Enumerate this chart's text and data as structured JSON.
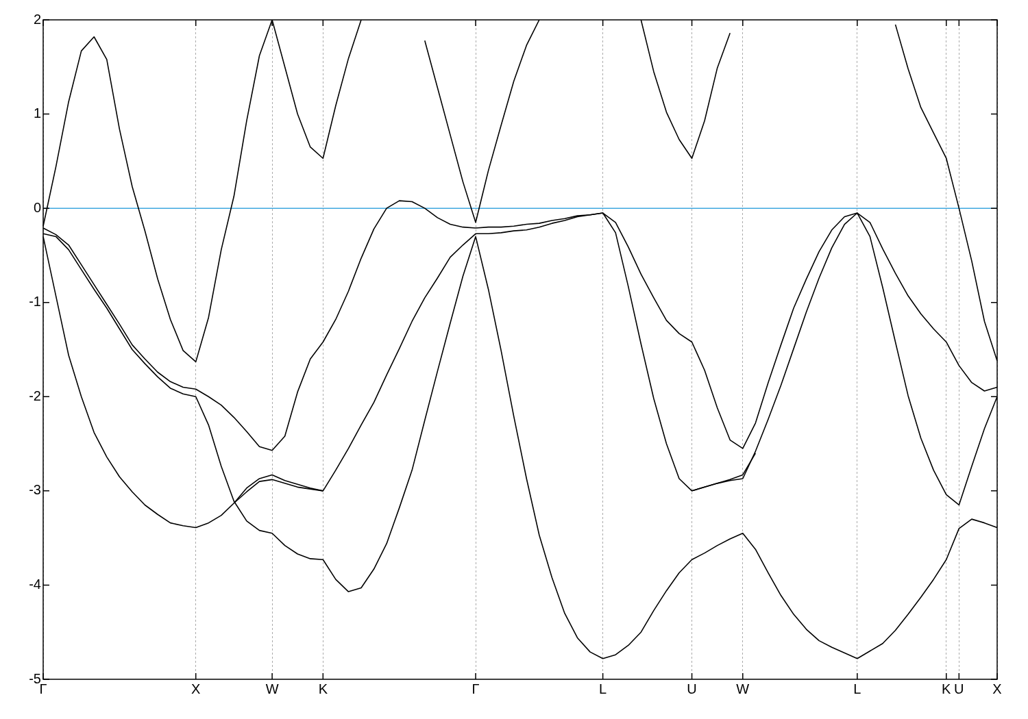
{
  "chart_data": {
    "type": "line",
    "ylim": [
      -5,
      2
    ],
    "categories": [
      "Γ",
      null,
      null,
      null,
      null,
      null,
      null,
      null,
      null,
      null,
      null,
      null,
      "X",
      null,
      null,
      null,
      null,
      null,
      "W",
      null,
      null,
      null,
      "K",
      null,
      null,
      null,
      null,
      null,
      null,
      null,
      null,
      null,
      null,
      null,
      "Γ",
      null,
      null,
      null,
      null,
      null,
      null,
      null,
      null,
      null,
      "L",
      null,
      null,
      null,
      null,
      null,
      null,
      "U",
      null,
      null,
      null,
      "W",
      null,
      null,
      null,
      null,
      null,
      null,
      null,
      null,
      "L",
      null,
      null,
      null,
      null,
      null,
      null,
      "K",
      "U",
      null,
      null,
      "X"
    ],
    "yticks": [
      -5,
      -4,
      -3,
      -2,
      -1,
      0,
      1,
      2
    ],
    "grid": "x",
    "legend": false,
    "marker": "none",
    "line_style": "solid",
    "ref_lines": [
      {
        "axis": "y",
        "value": 0,
        "color": "#3ea8e0"
      }
    ],
    "series": [
      {
        "color": "#000000",
        "values": [
          -0.21,
          -0.28,
          -0.39,
          -0.6,
          -0.81,
          -1.02,
          -1.23,
          -1.45,
          -1.6,
          -1.74,
          -1.84,
          -1.9,
          -1.92,
          -2.0,
          -2.09,
          -2.22,
          -2.37,
          -2.53,
          -2.57,
          -2.42,
          -1.95,
          -1.6,
          -1.42,
          -1.18,
          -0.88,
          -0.53,
          -0.22,
          0.0,
          0.08,
          0.07,
          0.0,
          -0.1,
          -0.17,
          -0.2,
          -0.21,
          -0.2,
          -0.2,
          -0.19,
          -0.17,
          -0.16,
          -0.13,
          -0.11,
          -0.08,
          -0.07,
          -0.05,
          -0.15,
          -0.41,
          -0.7,
          -0.95,
          -1.19,
          -1.33,
          -1.42,
          -1.72,
          -2.12,
          -2.46,
          -2.55,
          -2.28,
          -1.85,
          -1.45,
          -1.06,
          -0.75,
          -0.46,
          -0.23,
          -0.09,
          -0.05,
          -0.15,
          -0.43,
          -0.69,
          -0.93,
          -1.12,
          -1.28,
          -1.42,
          -1.67,
          -1.85,
          -1.94,
          -1.9
        ]
      },
      {
        "color": "#000000",
        "values": [
          -0.27,
          -0.3,
          -0.44,
          -0.65,
          -0.86,
          -1.06,
          -1.28,
          -1.5,
          -1.65,
          -1.79,
          -1.91,
          -1.97,
          -2.0,
          -2.3,
          -2.74,
          -3.11,
          -3.32,
          -3.42,
          -3.45,
          -3.58,
          -3.67,
          -3.72,
          -3.73,
          -3.94,
          -4.07,
          -4.03,
          -3.83,
          -3.56,
          -3.18,
          -2.78,
          -2.25,
          -1.73,
          -1.22,
          -0.72,
          -0.3,
          -0.86,
          -1.51,
          -2.21,
          -2.87,
          -3.47,
          -3.92,
          -4.3,
          -4.56,
          -4.71,
          -4.78,
          -4.74,
          -4.64,
          -4.5,
          -4.27,
          -4.06,
          -3.87,
          -3.73,
          -3.66,
          -3.58,
          -3.51,
          -3.45,
          -3.62,
          -3.87,
          -4.11,
          -4.31,
          -4.47,
          -4.59,
          -4.66,
          -4.72,
          -4.78,
          -4.7,
          -4.62,
          -4.48,
          -4.31,
          -4.13,
          -3.94,
          -3.73,
          -3.4,
          -3.3,
          -3.34,
          -3.39
        ]
      },
      {
        "color": "#000000",
        "values": [
          -0.3,
          -0.93,
          -1.56,
          -2.0,
          -2.38,
          -2.64,
          -2.85,
          -3.01,
          -3.15,
          -3.25,
          -3.34,
          -3.37,
          -3.39,
          -3.34,
          -3.26,
          -3.13,
          -3.01,
          -2.9,
          -2.88,
          -2.92,
          -2.96,
          -2.98,
          -3.0,
          -2.78,
          -2.55,
          -2.3,
          -2.06,
          -1.77,
          -1.49,
          -1.2,
          -0.95,
          -0.74,
          -0.52,
          -0.39,
          -0.27,
          -0.27,
          -0.26,
          -0.24,
          -0.23,
          -0.2,
          -0.16,
          -0.13,
          -0.09,
          -0.07,
          -0.05,
          -0.26,
          -0.83,
          -1.44,
          -2.02,
          -2.5,
          -2.87,
          -3.0,
          -2.96,
          -2.92,
          -2.89,
          -2.87,
          -2.58,
          -2.24,
          -1.88,
          -1.49,
          -1.1,
          -0.74,
          -0.42,
          -0.17,
          -0.05,
          -0.3,
          -0.84,
          -1.42,
          -1.99,
          -2.44,
          -2.78,
          -3.04,
          -3.15,
          -2.74,
          -2.34,
          -2.0
        ]
      },
      {
        "color": "#000000",
        "values": [
          -0.19,
          0.44,
          1.13,
          1.67,
          1.82,
          1.58,
          0.84,
          0.23,
          -0.24,
          -0.75,
          -1.18,
          -1.51,
          -1.63,
          -1.16,
          -0.44,
          0.13,
          0.93,
          1.62,
          2.0,
          1.5,
          1.0,
          0.65,
          0.53,
          1.09,
          1.59,
          2,
          null,
          null,
          null,
          null,
          null,
          null,
          null,
          null,
          null,
          null,
          null,
          null,
          null,
          null,
          null,
          null,
          null,
          null,
          null,
          null,
          null,
          null,
          null,
          null,
          null,
          null,
          null,
          null,
          null,
          null,
          null,
          null,
          null,
          null,
          null,
          null,
          null,
          null,
          null,
          null,
          null,
          null,
          null,
          null,
          null,
          null,
          null,
          null,
          null,
          null
        ]
      },
      {
        "color": "#000000",
        "values": [
          null,
          null,
          null,
          null,
          null,
          null,
          null,
          null,
          null,
          null,
          null,
          null,
          null,
          null,
          null,
          null,
          null,
          null,
          null,
          null,
          null,
          null,
          null,
          null,
          null,
          null,
          null,
          null,
          null,
          null,
          1.78,
          1.28,
          0.78,
          0.28,
          -0.15,
          0.4,
          0.88,
          1.35,
          1.73,
          2,
          null,
          null,
          null,
          null,
          null,
          null,
          null,
          null,
          null,
          null,
          null,
          null,
          null,
          null,
          null,
          null,
          null,
          null,
          null,
          null,
          null,
          null,
          null,
          null,
          null,
          null,
          null,
          null,
          null,
          null,
          null,
          null,
          null,
          null,
          null,
          null
        ]
      },
      {
        "color": "#000000",
        "values": [
          null,
          null,
          null,
          null,
          null,
          null,
          null,
          null,
          null,
          null,
          null,
          null,
          null,
          null,
          null,
          null,
          null,
          null,
          null,
          null,
          null,
          null,
          null,
          null,
          null,
          null,
          null,
          null,
          null,
          null,
          null,
          null,
          null,
          null,
          null,
          null,
          null,
          null,
          null,
          null,
          null,
          null,
          null,
          null,
          null,
          null,
          null,
          2,
          1.45,
          1.02,
          0.73,
          0.53,
          0.93,
          1.49,
          1.86,
          null,
          null,
          null,
          null,
          null,
          null,
          null,
          null,
          null,
          null,
          null,
          null,
          null,
          null,
          null,
          null,
          null,
          null,
          null,
          null,
          null
        ]
      },
      {
        "color": "#000000",
        "values": [
          null,
          null,
          null,
          null,
          null,
          null,
          null,
          null,
          null,
          null,
          null,
          null,
          null,
          null,
          null,
          null,
          null,
          null,
          null,
          null,
          null,
          null,
          null,
          null,
          null,
          null,
          null,
          null,
          null,
          null,
          null,
          null,
          null,
          null,
          null,
          null,
          null,
          null,
          null,
          null,
          null,
          null,
          null,
          null,
          null,
          null,
          null,
          null,
          null,
          null,
          null,
          null,
          null,
          null,
          null,
          null,
          null,
          null,
          null,
          null,
          null,
          null,
          null,
          null,
          null,
          null,
          null,
          1.95,
          1.48,
          1.07,
          0.8,
          0.53,
          0,
          -0.56,
          -1.2,
          -1.62
        ]
      },
      {
        "color": "#000000",
        "values": [
          null,
          null,
          null,
          null,
          null,
          null,
          null,
          null,
          null,
          null,
          null,
          null,
          null,
          null,
          null,
          -3.13,
          -2.97,
          -2.87,
          -2.83,
          -2.89,
          -2.93,
          -2.97,
          -3.0,
          null,
          null,
          null,
          null,
          null,
          null,
          null,
          null,
          null,
          null,
          null,
          null,
          null,
          null,
          null,
          null,
          null,
          null,
          null,
          null,
          null,
          null,
          null,
          null,
          null,
          null,
          null,
          null,
          null,
          null,
          null,
          null,
          null,
          null,
          null,
          null,
          null,
          null,
          null,
          null,
          null,
          null,
          null,
          null,
          null,
          null,
          null,
          null,
          null,
          null,
          null,
          null,
          null
        ]
      },
      {
        "color": "#000000",
        "values": [
          null,
          null,
          null,
          null,
          null,
          null,
          null,
          null,
          null,
          null,
          null,
          null,
          null,
          null,
          null,
          null,
          null,
          null,
          null,
          null,
          null,
          null,
          null,
          null,
          null,
          null,
          null,
          null,
          null,
          null,
          null,
          null,
          null,
          null,
          null,
          null,
          null,
          null,
          null,
          null,
          null,
          null,
          null,
          null,
          null,
          null,
          null,
          null,
          null,
          null,
          null,
          -3.0,
          -2.96,
          -2.92,
          -2.88,
          -2.83,
          -2.6,
          null,
          null,
          null,
          null,
          null,
          null,
          null,
          null,
          null,
          null,
          null,
          null,
          null,
          null,
          null,
          null,
          null,
          null,
          null
        ]
      }
    ]
  }
}
